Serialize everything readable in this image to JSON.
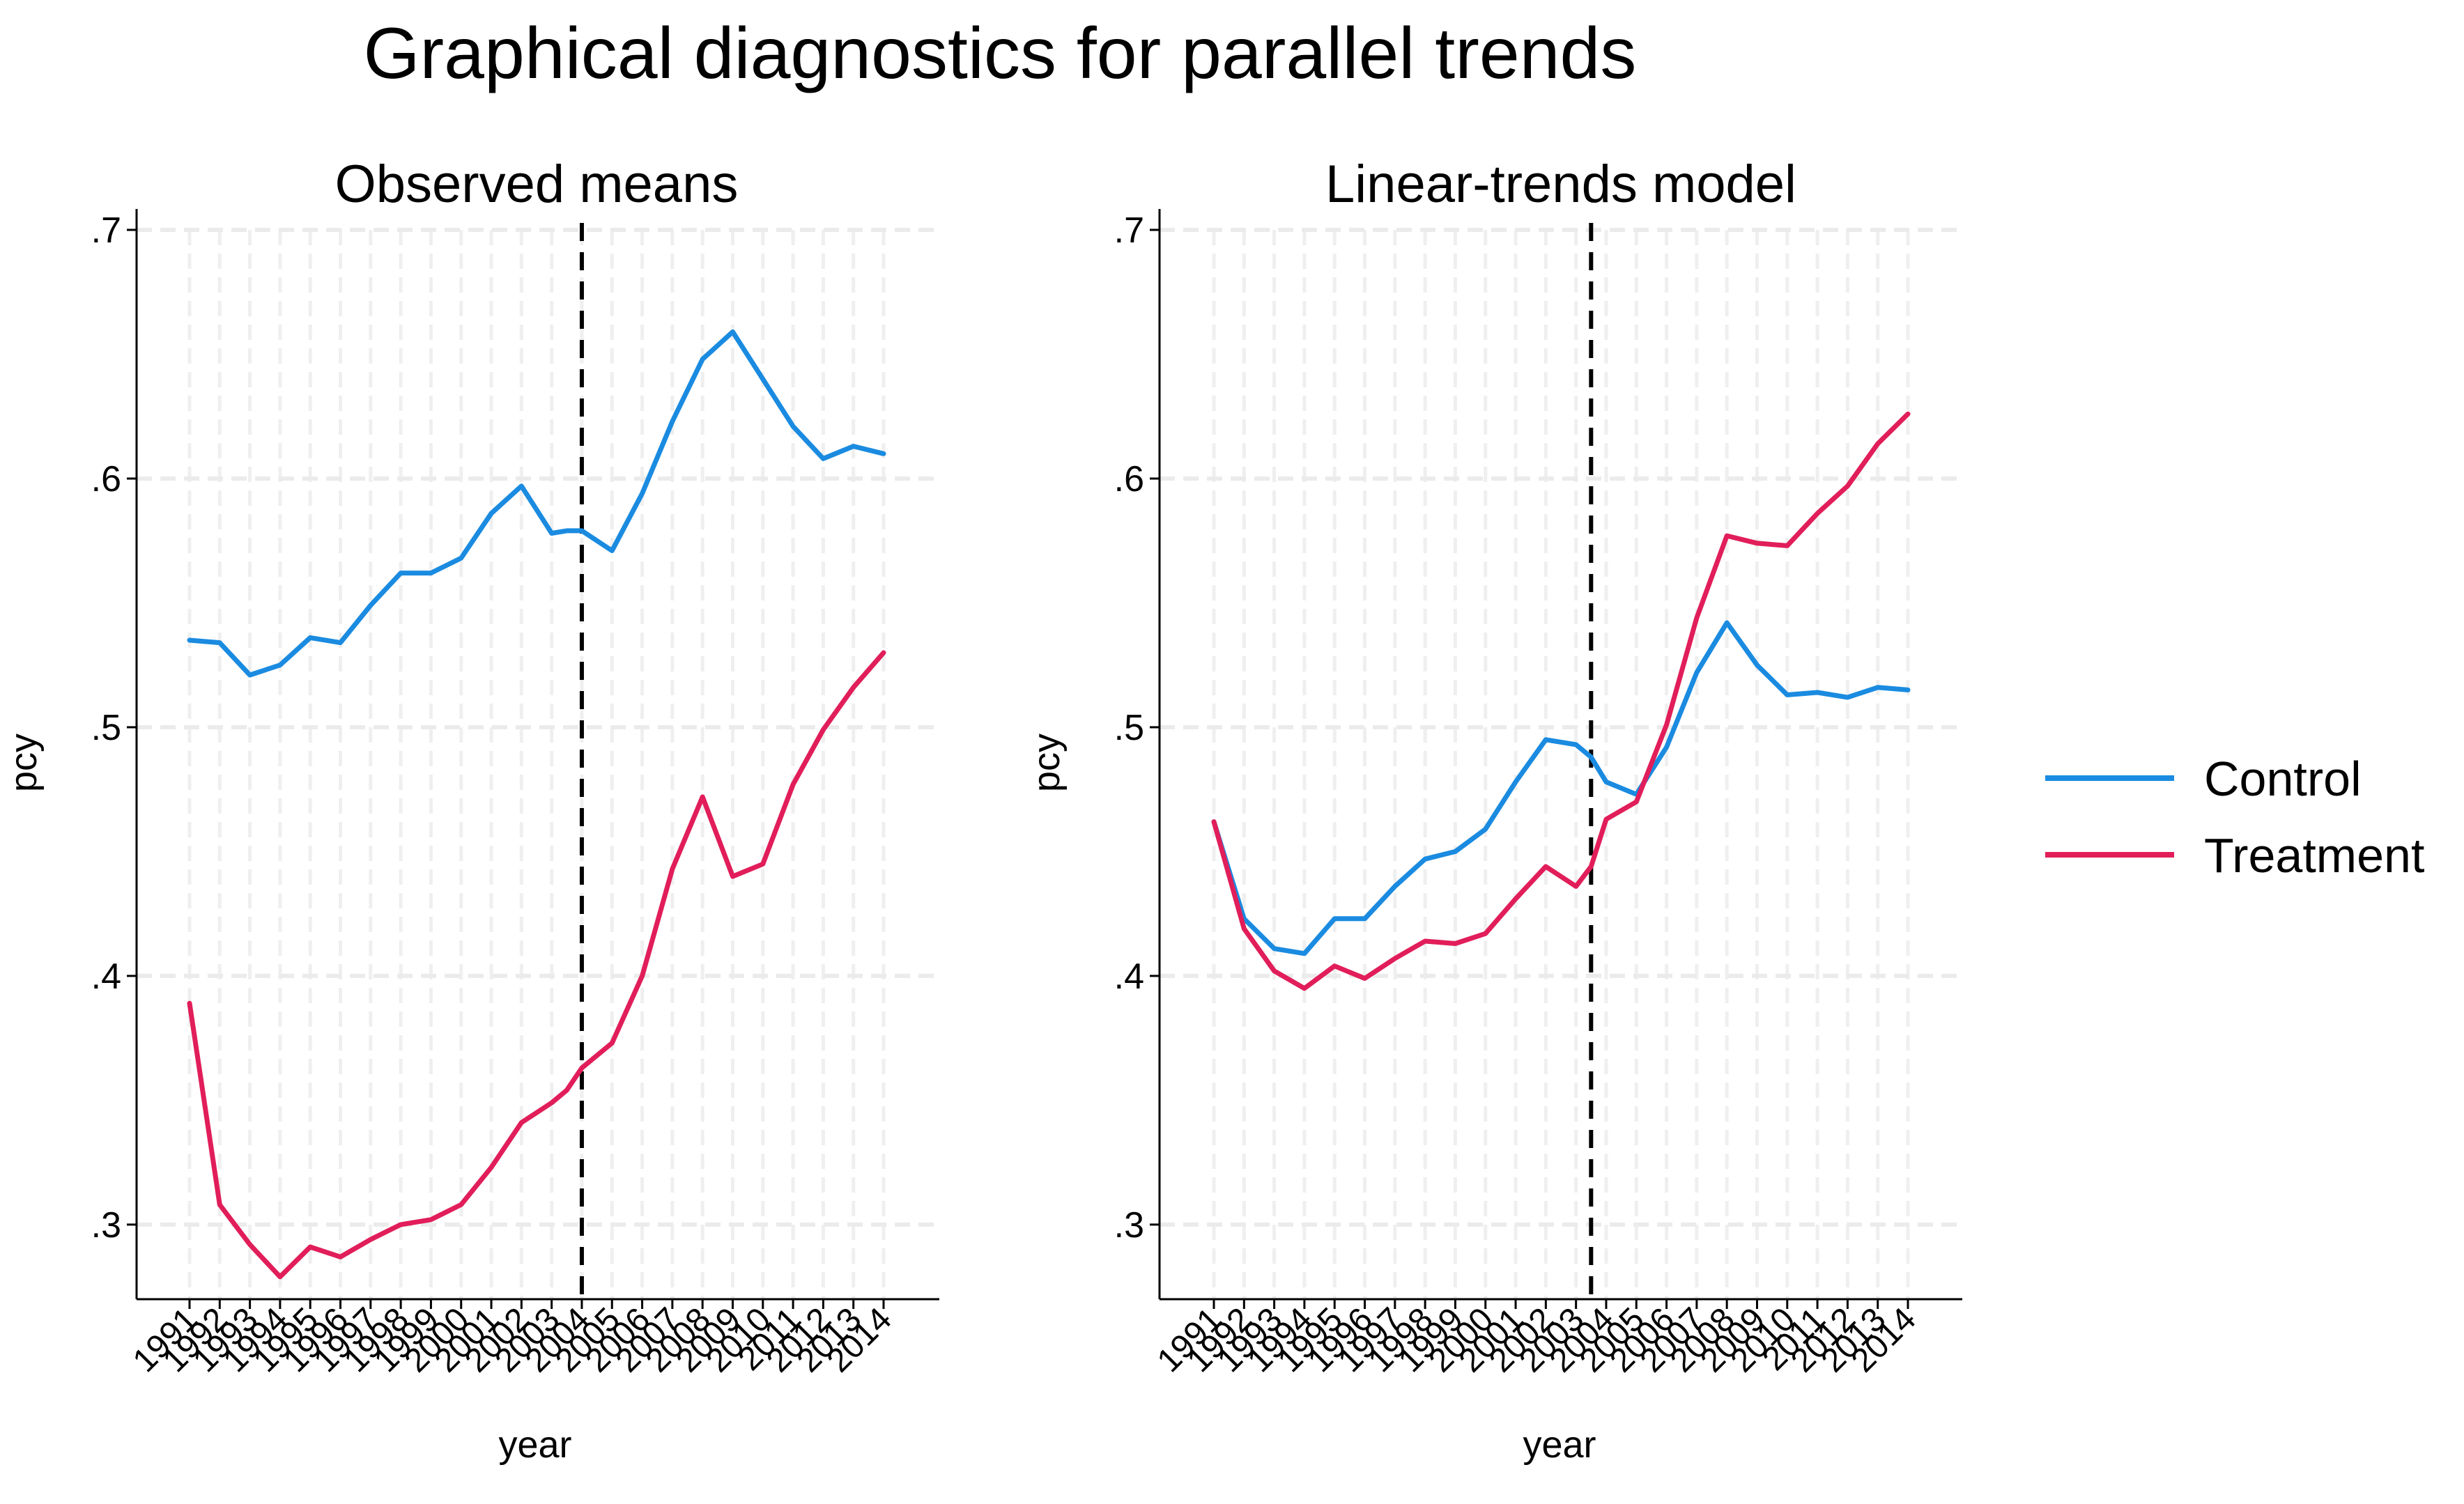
{
  "chart_data": {
    "title": "Graphical diagnostics for parallel trends",
    "type": "line",
    "legend": {
      "placement": "right",
      "entries": [
        {
          "name": "Control",
          "color": "#1a8be0"
        },
        {
          "name": "Treatment",
          "color": "#e11e5a"
        }
      ]
    },
    "panels": [
      {
        "title": "Observed means",
        "xlabel": "year",
        "ylabel": "pcy",
        "treatment_year": 2004,
        "x": [
          1991,
          1992,
          1993,
          1994,
          1995,
          1996,
          1997,
          1998,
          1999,
          2000,
          2001,
          2002,
          2003,
          2004,
          2005,
          2006,
          2007,
          2008,
          2009,
          2010,
          2011,
          2012,
          2013,
          2014
        ],
        "xticklabels": [
          "1991",
          "1992",
          "1993",
          "1994",
          "1995",
          "1996",
          "1997",
          "1998",
          "1999",
          "2000",
          "2001",
          "2002",
          "2003",
          "2004",
          "2005",
          "2006",
          "2007",
          "2008",
          "2009",
          "2010",
          "2011",
          "2012",
          "2013",
          "2014"
        ],
        "ylim": [
          0.27,
          0.7
        ],
        "yticks": [
          0.3,
          0.4,
          0.5,
          0.6,
          0.7
        ],
        "yticklabels": [
          ".3",
          ".4",
          ".5",
          ".6",
          ".7"
        ],
        "series": [
          {
            "name": "Control",
            "x": [
              1991,
              1992,
              1993,
              1994,
              1995,
              1996,
              1997,
              1998,
              1999,
              2000,
              2001,
              2002,
              2003,
              2003.5,
              2004,
              2005,
              2006,
              2007,
              2008,
              2009,
              2010,
              2011,
              2012,
              2013,
              2014
            ],
            "values": [
              0.535,
              0.534,
              0.521,
              0.525,
              0.536,
              0.534,
              0.549,
              0.562,
              0.562,
              0.568,
              0.586,
              0.597,
              0.578,
              0.579,
              0.579,
              0.571,
              0.594,
              0.623,
              0.648,
              0.659,
              0.64,
              0.621,
              0.608,
              0.613,
              0.61
            ]
          },
          {
            "name": "Treatment",
            "x": [
              1991,
              1992,
              1993,
              1994,
              1995,
              1996,
              1997,
              1998,
              1999,
              2000,
              2001,
              2002,
              2003,
              2003.5,
              2004,
              2005,
              2006,
              2007,
              2008,
              2009,
              2010,
              2011,
              2012,
              2013,
              2014
            ],
            "values": [
              0.389,
              0.308,
              0.292,
              0.279,
              0.291,
              0.287,
              0.294,
              0.3,
              0.302,
              0.308,
              0.323,
              0.341,
              0.349,
              0.354,
              0.363,
              0.373,
              0.4,
              0.443,
              0.472,
              0.44,
              0.445,
              0.477,
              0.499,
              0.516,
              0.53
            ]
          }
        ]
      },
      {
        "title": "Linear-trends model",
        "xlabel": "year",
        "ylabel": "pcy",
        "treatment_year": 2003.5,
        "x": [
          1991,
          1992,
          1993,
          1994,
          1995,
          1996,
          1997,
          1998,
          1999,
          2000,
          2001,
          2002,
          2003,
          2004,
          2005,
          2006,
          2007,
          2008,
          2009,
          2010,
          2011,
          2012,
          2013,
          2014
        ],
        "xticklabels": [
          "1991",
          "1992",
          "1993",
          "1994",
          "1995",
          "1996",
          "1997",
          "1998",
          "1999",
          "2000",
          "2001",
          "2002",
          "2003",
          "2004",
          "2005",
          "2006",
          "2007",
          "2008",
          "2009",
          "2010",
          "2011",
          "2012",
          "2013",
          "2014"
        ],
        "ylim": [
          0.27,
          0.7
        ],
        "yticks": [
          0.3,
          0.4,
          0.5,
          0.6,
          0.7
        ],
        "yticklabels": [
          ".3",
          ".4",
          ".5",
          ".6",
          ".7"
        ],
        "series": [
          {
            "name": "Control",
            "x": [
              1991,
              1992,
              1993,
              1994,
              1995,
              1996,
              1997,
              1998,
              1999,
              2000,
              2001,
              2002,
              2003,
              2003.5,
              2004,
              2005,
              2006,
              2007,
              2008,
              2009,
              2010,
              2011,
              2012,
              2013,
              2014
            ],
            "values": [
              0.462,
              0.423,
              0.411,
              0.409,
              0.423,
              0.423,
              0.436,
              0.447,
              0.45,
              0.459,
              0.478,
              0.495,
              0.493,
              0.488,
              0.478,
              0.473,
              0.492,
              0.522,
              0.542,
              0.525,
              0.513,
              0.514,
              0.512,
              0.516,
              0.515
            ]
          },
          {
            "name": "Treatment",
            "x": [
              1991,
              1992,
              1993,
              1994,
              1995,
              1996,
              1997,
              1998,
              1999,
              2000,
              2001,
              2002,
              2003,
              2003.5,
              2004,
              2005,
              2006,
              2007,
              2008,
              2009,
              2010,
              2011,
              2012,
              2013,
              2014
            ],
            "values": [
              0.462,
              0.419,
              0.402,
              0.395,
              0.404,
              0.399,
              0.407,
              0.414,
              0.413,
              0.417,
              0.431,
              0.444,
              0.436,
              0.444,
              0.463,
              0.47,
              0.501,
              0.544,
              0.577,
              0.574,
              0.573,
              0.586,
              0.597,
              0.614,
              0.626
            ]
          }
        ]
      }
    ]
  }
}
